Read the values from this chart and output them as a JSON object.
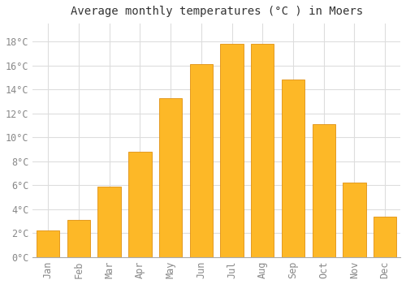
{
  "title": "Average monthly temperatures (°C ) in Moers",
  "months": [
    "Jan",
    "Feb",
    "Mar",
    "Apr",
    "May",
    "Jun",
    "Jul",
    "Aug",
    "Sep",
    "Oct",
    "Nov",
    "Dec"
  ],
  "values": [
    2.2,
    3.1,
    5.9,
    8.8,
    13.3,
    16.1,
    17.8,
    17.8,
    14.8,
    11.1,
    6.2,
    3.4
  ],
  "bar_color": "#FDB827",
  "bar_edge_color": "#E09010",
  "background_color": "#FFFFFF",
  "grid_color": "#DDDDDD",
  "text_color": "#888888",
  "ylim": [
    0,
    19.5
  ],
  "yticks": [
    0,
    2,
    4,
    6,
    8,
    10,
    12,
    14,
    16,
    18
  ],
  "title_fontsize": 10,
  "tick_fontsize": 8.5,
  "bar_width": 0.75
}
